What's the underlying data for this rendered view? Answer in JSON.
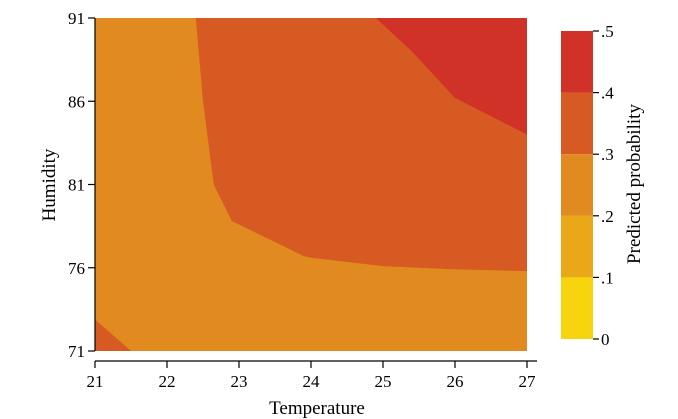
{
  "chart_data": {
    "type": "contour",
    "xlabel": "Temperature",
    "ylabel": "Humidity",
    "xlim": [
      21,
      27
    ],
    "ylim": [
      71,
      91
    ],
    "x_ticks": [
      "21",
      "22",
      "23",
      "24",
      "25",
      "26",
      "27"
    ],
    "y_ticks": [
      "71",
      "76",
      "81",
      "86",
      "91"
    ],
    "colorbar": {
      "label": "Predicted probability",
      "ticks": [
        "0",
        ".1",
        ".2",
        ".3",
        ".4",
        ".5"
      ],
      "bands": [
        {
          "from": 0.0,
          "to": 0.1,
          "color": "#f7d40d"
        },
        {
          "from": 0.1,
          "to": 0.2,
          "color": "#eaa718"
        },
        {
          "from": 0.2,
          "to": 0.3,
          "color": "#e08a1f"
        },
        {
          "from": 0.3,
          "to": 0.4,
          "color": "#d65a22"
        },
        {
          "from": 0.4,
          "to": 0.5,
          "color": "#d03228"
        }
      ]
    },
    "regions": [
      {
        "name": "band-0.2-0.3",
        "color": "#e08a1f",
        "points": [
          [
            21,
            71
          ],
          [
            27,
            71
          ],
          [
            27,
            91
          ],
          [
            21,
            91
          ]
        ]
      },
      {
        "name": "band-0.3-0.4-main",
        "color": "#d65a22",
        "points": [
          [
            22.4,
            91
          ],
          [
            27,
            91
          ],
          [
            27,
            75.8
          ],
          [
            26,
            75.9
          ],
          [
            25,
            76.1
          ],
          [
            24,
            76.6
          ],
          [
            23.9,
            76.7
          ],
          [
            23,
            78.6
          ],
          [
            22.9,
            78.8
          ],
          [
            22.65,
            81
          ],
          [
            22.5,
            86
          ],
          [
            22.4,
            91
          ]
        ]
      },
      {
        "name": "band-0.3-0.4-corner",
        "color": "#d65a22",
        "points": [
          [
            21,
            71
          ],
          [
            21.5,
            71
          ],
          [
            21,
            72.9
          ]
        ]
      },
      {
        "name": "band-0.4-0.5",
        "color": "#d03228",
        "points": [
          [
            24.9,
            91
          ],
          [
            27,
            91
          ],
          [
            27,
            84
          ],
          [
            26,
            86.2
          ],
          [
            25.4,
            89
          ],
          [
            24.9,
            91
          ]
        ]
      }
    ]
  }
}
